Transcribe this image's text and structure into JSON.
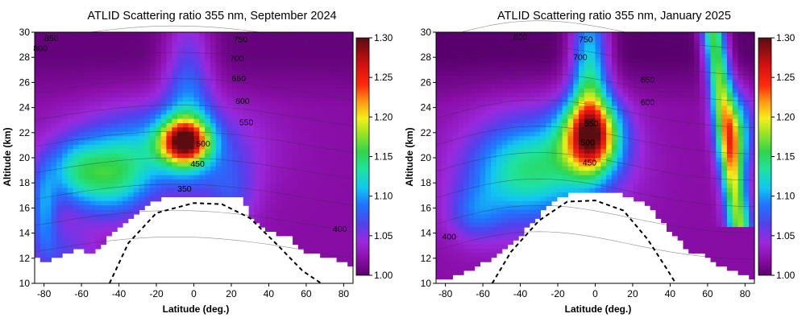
{
  "chart_data": [
    {
      "type": "heatmap",
      "title": "ATLID Scattering ratio 355 nm, September 2024",
      "xlabel": "Latitude (deg.)",
      "ylabel": "Altitude (km)",
      "xlim": [
        -85,
        85
      ],
      "ylim": [
        10,
        30
      ],
      "x_ticks": [
        "-80",
        "-60",
        "-40",
        "-20",
        "0",
        "20",
        "40",
        "60",
        "80"
      ],
      "y_ticks": [
        "10",
        "12",
        "14",
        "16",
        "18",
        "20",
        "22",
        "24",
        "26",
        "28",
        "30"
      ],
      "colorbar": {
        "min": 1.0,
        "max": 1.3,
        "ticks": [
          "1.00",
          "1.05",
          "1.10",
          "1.15",
          "1.20",
          "1.25",
          "1.30"
        ]
      },
      "peak": {
        "lat": -5,
        "alt": 21.3,
        "value": 1.3
      },
      "tropopause_dashed": [
        [
          -45,
          10
        ],
        [
          -35,
          13.2
        ],
        [
          -20,
          15.6
        ],
        [
          0,
          16.4
        ],
        [
          15,
          16.3
        ],
        [
          30,
          15.2
        ],
        [
          45,
          13
        ],
        [
          58,
          11
        ],
        [
          68,
          10
        ]
      ],
      "contour_labels": [
        {
          "text": "850",
          "x": -76,
          "y": 29.3
        },
        {
          "text": "800",
          "x": -82,
          "y": 28.5
        },
        {
          "text": "750",
          "x": 25,
          "y": 29.2
        },
        {
          "text": "700",
          "x": 23,
          "y": 27.7
        },
        {
          "text": "650",
          "x": 24,
          "y": 26.1
        },
        {
          "text": "600",
          "x": 26,
          "y": 24.3
        },
        {
          "text": "550",
          "x": 28,
          "y": 22.6
        },
        {
          "text": "500",
          "x": 5,
          "y": 20.9
        },
        {
          "text": "450",
          "x": 2,
          "y": 19.3
        },
        {
          "text": "400",
          "x": 78,
          "y": 14.1
        },
        {
          "text": "350",
          "x": -5,
          "y": 17.3
        }
      ]
    },
    {
      "type": "heatmap",
      "title": "ATLID Scattering ratio 355 nm, January 2025",
      "xlabel": "Latitude (deg.)",
      "ylabel": "Altitude (km)",
      "xlim": [
        -85,
        85
      ],
      "ylim": [
        10,
        30
      ],
      "x_ticks": [
        "-80",
        "-60",
        "-40",
        "-20",
        "0",
        "20",
        "40",
        "60",
        "80"
      ],
      "y_ticks": [
        "10",
        "12",
        "14",
        "16",
        "18",
        "20",
        "22",
        "24",
        "26",
        "28",
        "30"
      ],
      "colorbar": {
        "min": 1.0,
        "max": 1.3,
        "ticks": [
          "1.00",
          "1.05",
          "1.10",
          "1.15",
          "1.20",
          "1.25",
          "1.30"
        ]
      },
      "peak": {
        "lat": -2,
        "alt": 21.8,
        "value": 1.22
      },
      "tropopause_dashed": [
        [
          -55,
          10
        ],
        [
          -45,
          12.5
        ],
        [
          -30,
          15
        ],
        [
          -15,
          16.5
        ],
        [
          0,
          16.6
        ],
        [
          15,
          15.8
        ],
        [
          28,
          13.5
        ],
        [
          38,
          11.2
        ],
        [
          43,
          10
        ]
      ],
      "contour_labels": [
        {
          "text": "800",
          "x": -40,
          "y": 29.4
        },
        {
          "text": "750",
          "x": -5,
          "y": 29.2
        },
        {
          "text": "700",
          "x": -8,
          "y": 27.8
        },
        {
          "text": "650",
          "x": 28,
          "y": 26
        },
        {
          "text": "600",
          "x": 28,
          "y": 24.2
        },
        {
          "text": "550",
          "x": -2,
          "y": 22.5
        },
        {
          "text": "500",
          "x": -4,
          "y": 21
        },
        {
          "text": "450",
          "x": -3,
          "y": 19.4
        },
        {
          "text": "400",
          "x": -78,
          "y": 13.5
        }
      ]
    }
  ]
}
